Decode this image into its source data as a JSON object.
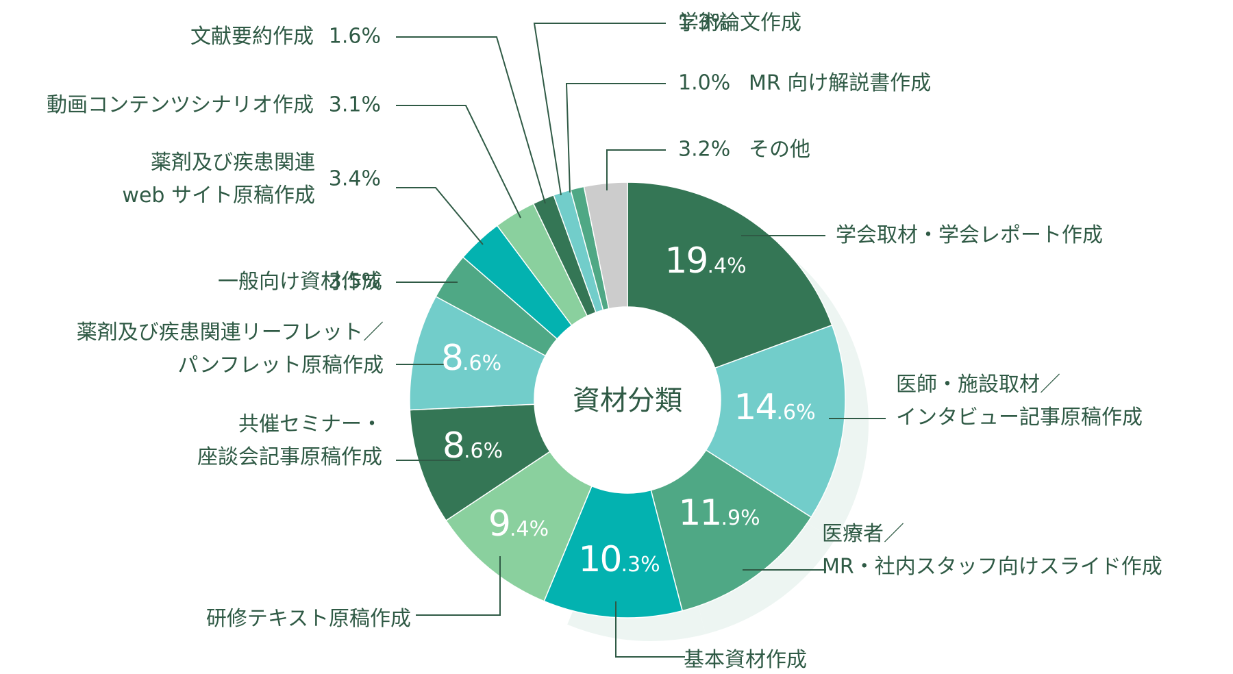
{
  "chart_data": {
    "type": "pie",
    "title": "資材分類",
    "series": [
      {
        "label_lines": [
          "学会取材・学会レポート作成"
        ],
        "value": 19.4,
        "color": "#347655",
        "inside": true
      },
      {
        "label_lines": [
          "医師・施設取材／",
          "インタビュー記事原稿作成"
        ],
        "value": 14.6,
        "color": "#72cdca",
        "inside": true
      },
      {
        "label_lines": [
          "医療者／",
          "MR・社内スタッフ向けスライド作成"
        ],
        "value": 11.9,
        "color": "#4fa885",
        "inside": true
      },
      {
        "label_lines": [
          "基本資材作成"
        ],
        "value": 10.3,
        "color": "#03b2b0",
        "inside": true
      },
      {
        "label_lines": [
          "研修テキスト原稿作成"
        ],
        "value": 9.4,
        "color": "#8ad09e",
        "inside": true
      },
      {
        "label_lines": [
          "共催セミナー・",
          "座談会記事原稿作成"
        ],
        "value": 8.6,
        "color": "#347655",
        "inside": true
      },
      {
        "label_lines": [
          "薬剤及び疾患関連リーフレット／",
          "パンフレット原稿作成"
        ],
        "value": 8.6,
        "color": "#72cdca",
        "inside": true
      },
      {
        "label_lines": [
          "一般向け資材作成"
        ],
        "value": 3.5,
        "color": "#4fa885",
        "value_text": "3.5%",
        "inside": false
      },
      {
        "label_lines": [
          "薬剤及び疾患関連",
          "web サイト原稿作成"
        ],
        "value": 3.4,
        "color": "#03b2b0",
        "value_text": "3.4%",
        "inside": false
      },
      {
        "label_lines": [
          "動画コンテンツシナリオ作成"
        ],
        "value": 3.1,
        "color": "#8ad09e",
        "value_text": "3.1%",
        "inside": false
      },
      {
        "label_lines": [
          "文献要約作成"
        ],
        "value": 1.6,
        "color": "#347655",
        "value_text": "1.6%",
        "inside": false
      },
      {
        "label_lines": [
          "学術論文作成"
        ],
        "value": 1.3,
        "color": "#72cdca",
        "value_text": "1.3%",
        "inside": false
      },
      {
        "label_lines": [
          "MR 向け解説書作成"
        ],
        "value": 1.0,
        "color": "#4fa885",
        "value_text": "1.0%",
        "inside": false
      },
      {
        "label_lines": [
          "その他"
        ],
        "value": 3.2,
        "color": "#cccccc",
        "value_text": "3.2%",
        "inside": false
      }
    ],
    "unit": "%",
    "shadow_color": "#edf5f2",
    "text_color": "#2f5a45"
  }
}
